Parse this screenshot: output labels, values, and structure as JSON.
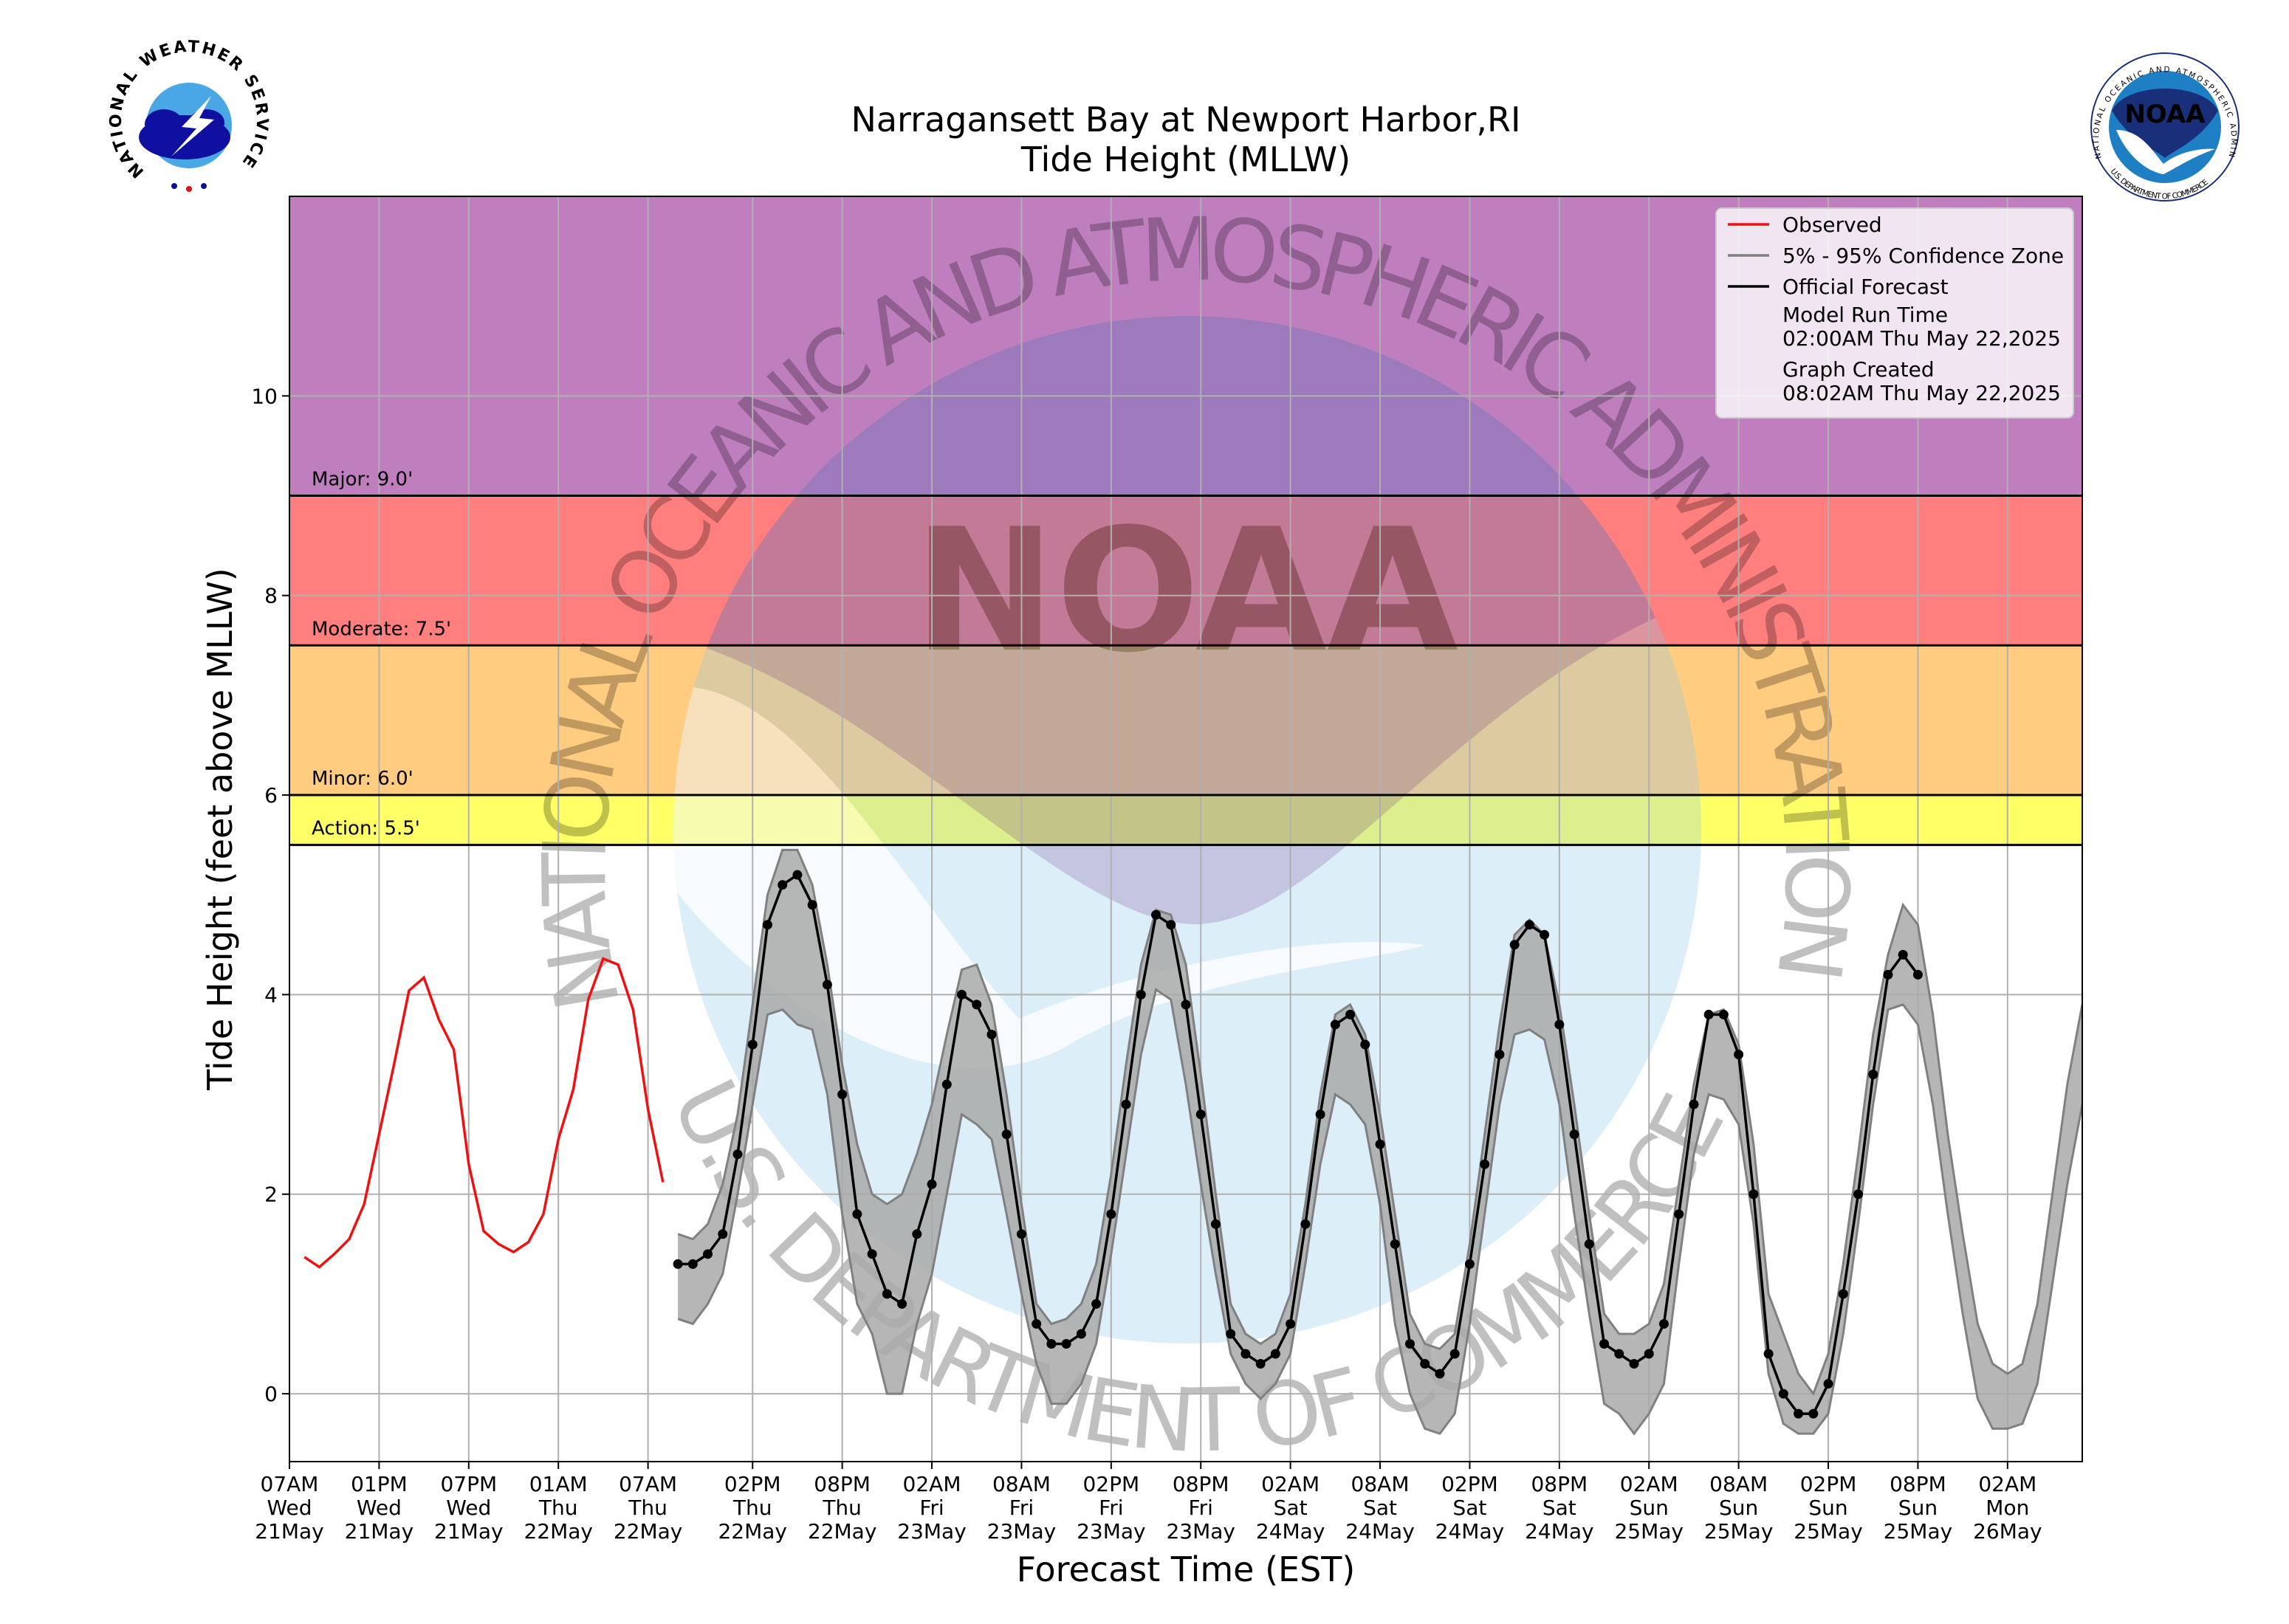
{
  "chart_data": {
    "type": "line",
    "title": "Narragansett Bay at Newport Harbor,RI",
    "subtitle": "Tide Height (MLLW)",
    "xlabel": "Forecast Time (EST)",
    "ylabel": "Tide Height (feet above MLLW)",
    "xlim": [
      "May 21 07:00",
      "May 26 07:00"
    ],
    "ylim": [
      -0.68,
      12
    ],
    "yticks": [
      0,
      2,
      4,
      6,
      8,
      10
    ],
    "grid": true,
    "legend_position": "upper right",
    "xticks": [
      {
        "value": "May 21 07:00",
        "label": [
          "07AM",
          "Wed",
          "21May"
        ]
      },
      {
        "value": "May 21 13:00",
        "label": [
          "01PM",
          "Wed",
          "21May"
        ]
      },
      {
        "value": "May 21 19:00",
        "label": [
          "07PM",
          "Wed",
          "21May"
        ]
      },
      {
        "value": "May 22 01:00",
        "label": [
          "01AM",
          "Thu",
          "22May"
        ]
      },
      {
        "value": "May 22 07:00",
        "label": [
          "07AM",
          "Thu",
          "22May"
        ]
      },
      {
        "value": "May 22 14:00",
        "label": [
          "02PM",
          "Thu",
          "22May"
        ]
      },
      {
        "value": "May 22 20:00",
        "label": [
          "08PM",
          "Thu",
          "22May"
        ]
      },
      {
        "value": "May 23 02:00",
        "label": [
          "02AM",
          "Fri",
          "23May"
        ]
      },
      {
        "value": "May 23 08:00",
        "label": [
          "08AM",
          "Fri",
          "23May"
        ]
      },
      {
        "value": "May 23 14:00",
        "label": [
          "02PM",
          "Fri",
          "23May"
        ]
      },
      {
        "value": "May 23 20:00",
        "label": [
          "08PM",
          "Fri",
          "23May"
        ]
      },
      {
        "value": "May 24 02:00",
        "label": [
          "02AM",
          "Sat",
          "24May"
        ]
      },
      {
        "value": "May 24 08:00",
        "label": [
          "08AM",
          "Sat",
          "24May"
        ]
      },
      {
        "value": "May 24 14:00",
        "label": [
          "02PM",
          "Sat",
          "24May"
        ]
      },
      {
        "value": "May 24 20:00",
        "label": [
          "08PM",
          "Sat",
          "24May"
        ]
      },
      {
        "value": "May 25 02:00",
        "label": [
          "02AM",
          "Sun",
          "25May"
        ]
      },
      {
        "value": "May 25 08:00",
        "label": [
          "08AM",
          "Sun",
          "25May"
        ]
      },
      {
        "value": "May 25 14:00",
        "label": [
          "02PM",
          "Sun",
          "25May"
        ]
      },
      {
        "value": "May 25 20:00",
        "label": [
          "08PM",
          "Sun",
          "25May"
        ]
      },
      {
        "value": "May 26 02:00",
        "label": [
          "02AM",
          "Mon",
          "26May"
        ]
      }
    ],
    "thresholds": [
      {
        "label": "Action: 5.5'",
        "value": 5.5,
        "color": "#ffff66"
      },
      {
        "label": "Minor: 6.0'",
        "value": 6.0,
        "color": "#ffcc80"
      },
      {
        "label": "Moderate: 7.5'",
        "value": 7.5,
        "color": "#ff7f7f"
      },
      {
        "label": "Major: 9.0'",
        "value": 9.0,
        "color": "#bf7fbf"
      }
    ],
    "series": [
      {
        "name": "Observed",
        "color": "#ee1111",
        "x": [
          "May 21 08:00",
          "May 21 09:00",
          "May 21 10:00",
          "May 21 11:00",
          "May 21 12:00",
          "May 21 13:00",
          "May 21 14:00",
          "May 21 15:00",
          "May 21 16:00",
          "May 21 17:00",
          "May 21 18:00",
          "May 21 19:00",
          "May 21 20:00",
          "May 21 21:00",
          "May 21 22:00",
          "May 21 23:00",
          "May 22 00:00",
          "May 22 01:00",
          "May 22 02:00",
          "May 22 03:00",
          "May 22 04:00",
          "May 22 05:00",
          "May 22 06:00",
          "May 22 07:00",
          "May 22 08:00"
        ],
        "values": [
          1.37,
          1.27,
          1.4,
          1.55,
          1.9,
          2.6,
          3.3,
          4.04,
          4.17,
          3.75,
          3.45,
          2.3,
          1.63,
          1.5,
          1.42,
          1.52,
          1.8,
          2.55,
          3.05,
          3.95,
          4.36,
          4.3,
          3.85,
          2.85,
          2.12
        ]
      },
      {
        "name": "5% - 95% Confidence Zone",
        "color": "#808080",
        "fill": "#a9a9a9",
        "x": [
          "May 22 09:00",
          "May 22 10:00",
          "May 22 11:00",
          "May 22 12:00",
          "May 22 13:00",
          "May 22 14:00",
          "May 22 15:00",
          "May 22 16:00",
          "May 22 17:00",
          "May 22 18:00",
          "May 22 19:00",
          "May 22 20:00",
          "May 22 21:00",
          "May 22 22:00",
          "May 22 23:00",
          "May 23 00:00",
          "May 23 01:00",
          "May 23 02:00",
          "May 23 03:00",
          "May 23 04:00",
          "May 23 05:00",
          "May 23 06:00",
          "May 23 07:00",
          "May 23 08:00",
          "May 23 09:00",
          "May 23 10:00",
          "May 23 11:00",
          "May 23 12:00",
          "May 23 13:00",
          "May 23 14:00",
          "May 23 15:00",
          "May 23 16:00",
          "May 23 17:00",
          "May 23 18:00",
          "May 23 19:00",
          "May 23 20:00",
          "May 23 21:00",
          "May 23 22:00",
          "May 23 23:00",
          "May 24 00:00",
          "May 24 01:00",
          "May 24 02:00",
          "May 24 03:00",
          "May 24 04:00",
          "May 24 05:00",
          "May 24 06:00",
          "May 24 07:00",
          "May 24 08:00",
          "May 24 09:00",
          "May 24 10:00",
          "May 24 11:00",
          "May 24 12:00",
          "May 24 13:00",
          "May 24 14:00",
          "May 24 15:00",
          "May 24 16:00",
          "May 24 17:00",
          "May 24 18:00",
          "May 24 19:00",
          "May 24 20:00",
          "May 24 21:00",
          "May 24 22:00",
          "May 24 23:00",
          "May 25 00:00",
          "May 25 01:00",
          "May 25 02:00",
          "May 25 03:00",
          "May 25 04:00",
          "May 25 05:00",
          "May 25 06:00",
          "May 25 07:00",
          "May 25 08:00",
          "May 25 09:00",
          "May 25 10:00",
          "May 25 11:00",
          "May 25 12:00",
          "May 25 13:00",
          "May 25 14:00",
          "May 25 15:00",
          "May 25 16:00",
          "May 25 17:00",
          "May 25 18:00",
          "May 25 19:00",
          "May 25 20:00",
          "May 25 21:00",
          "May 25 22:00",
          "May 25 23:00",
          "May 26 00:00",
          "May 26 01:00",
          "May 26 02:00",
          "May 26 03:00",
          "May 26 04:00",
          "May 26 05:00",
          "May 26 06:00",
          "May 26 07:00"
        ],
        "upper": [
          1.6,
          1.55,
          1.7,
          2.1,
          2.8,
          3.9,
          5.0,
          5.45,
          5.45,
          5.1,
          4.3,
          3.3,
          2.5,
          2.0,
          1.9,
          2.0,
          2.4,
          2.9,
          3.6,
          4.25,
          4.3,
          3.9,
          3.0,
          1.9,
          0.9,
          0.7,
          0.75,
          0.9,
          1.3,
          2.2,
          3.3,
          4.3,
          4.85,
          4.8,
          4.3,
          3.2,
          2.0,
          0.9,
          0.6,
          0.5,
          0.6,
          1.0,
          1.9,
          3.0,
          3.8,
          3.9,
          3.6,
          2.8,
          1.8,
          0.8,
          0.5,
          0.45,
          0.6,
          1.5,
          2.6,
          3.7,
          4.6,
          4.75,
          4.6,
          3.9,
          2.9,
          1.8,
          0.8,
          0.6,
          0.6,
          0.7,
          1.1,
          2.1,
          3.1,
          3.8,
          3.85,
          3.5,
          2.5,
          1.0,
          0.6,
          0.2,
          0.0,
          0.4,
          1.3,
          2.4,
          3.6,
          4.4,
          4.9,
          4.7,
          3.8,
          2.6,
          1.6,
          0.7,
          0.3,
          0.2,
          0.3,
          0.9,
          2.0,
          3.1,
          3.9
        ],
        "lower": [
          0.75,
          0.7,
          0.9,
          1.2,
          2.0,
          2.9,
          3.8,
          3.85,
          3.7,
          3.65,
          3.0,
          1.8,
          0.9,
          0.6,
          0.0,
          0.0,
          0.7,
          1.2,
          2.0,
          2.8,
          2.7,
          2.55,
          1.8,
          1.0,
          0.3,
          -0.1,
          -0.1,
          0.1,
          0.5,
          1.4,
          2.4,
          3.4,
          4.05,
          3.95,
          3.1,
          2.1,
          1.2,
          0.4,
          0.1,
          -0.05,
          0.1,
          0.4,
          1.3,
          2.3,
          3.0,
          2.9,
          2.7,
          1.9,
          0.7,
          0.0,
          -0.35,
          -0.4,
          -0.2,
          0.7,
          1.8,
          2.9,
          3.6,
          3.65,
          3.55,
          2.9,
          1.8,
          0.8,
          -0.1,
          -0.2,
          -0.4,
          -0.2,
          0.1,
          1.3,
          2.4,
          3.0,
          2.95,
          2.7,
          1.7,
          0.2,
          -0.3,
          -0.4,
          -0.4,
          -0.2,
          0.6,
          1.7,
          2.9,
          3.85,
          3.9,
          3.7,
          2.9,
          1.8,
          0.8,
          -0.05,
          -0.35,
          -0.35,
          -0.3,
          0.1,
          1.1,
          2.1,
          2.9
        ]
      },
      {
        "name": "Official Forecast",
        "color": "#000000",
        "markers": true,
        "x": [
          "May 22 09:00",
          "May 22 10:00",
          "May 22 11:00",
          "May 22 12:00",
          "May 22 13:00",
          "May 22 14:00",
          "May 22 15:00",
          "May 22 16:00",
          "May 22 17:00",
          "May 22 18:00",
          "May 22 19:00",
          "May 22 20:00",
          "May 22 21:00",
          "May 22 22:00",
          "May 22 23:00",
          "May 23 00:00",
          "May 23 01:00",
          "May 23 02:00",
          "May 23 03:00",
          "May 23 04:00",
          "May 23 05:00",
          "May 23 06:00",
          "May 23 07:00",
          "May 23 08:00",
          "May 23 09:00",
          "May 23 10:00",
          "May 23 11:00",
          "May 23 12:00",
          "May 23 13:00",
          "May 23 14:00",
          "May 23 15:00",
          "May 23 16:00",
          "May 23 17:00",
          "May 23 18:00",
          "May 23 19:00",
          "May 23 20:00",
          "May 23 21:00",
          "May 23 22:00",
          "May 23 23:00",
          "May 24 00:00",
          "May 24 01:00",
          "May 24 02:00",
          "May 24 03:00",
          "May 24 04:00",
          "May 24 05:00",
          "May 24 06:00",
          "May 24 07:00",
          "May 24 08:00",
          "May 24 09:00",
          "May 24 10:00",
          "May 24 11:00",
          "May 24 12:00",
          "May 24 13:00",
          "May 24 14:00",
          "May 24 15:00",
          "May 24 16:00",
          "May 24 17:00",
          "May 24 18:00",
          "May 24 19:00",
          "May 24 20:00",
          "May 24 21:00",
          "May 24 22:00",
          "May 24 23:00",
          "May 25 00:00",
          "May 25 01:00",
          "May 25 02:00",
          "May 25 03:00",
          "May 25 04:00",
          "May 25 05:00",
          "May 25 06:00",
          "May 25 07:00",
          "May 25 08:00",
          "May 25 09:00",
          "May 25 10:00",
          "May 25 11:00",
          "May 25 12:00",
          "May 25 13:00",
          "May 25 14:00",
          "May 25 15:00",
          "May 25 16:00",
          "May 25 17:00",
          "May 25 18:00",
          "May 25 19:00",
          "May 25 20:00"
        ],
        "values": [
          1.3,
          1.3,
          1.4,
          1.6,
          2.4,
          3.5,
          4.7,
          5.1,
          5.2,
          4.9,
          4.1,
          3.0,
          1.8,
          1.4,
          1.0,
          0.9,
          1.6,
          2.1,
          3.1,
          4.0,
          3.9,
          3.6,
          2.6,
          1.6,
          0.7,
          0.5,
          0.5,
          0.6,
          0.9,
          1.8,
          2.9,
          4.0,
          4.8,
          4.7,
          3.9,
          2.8,
          1.7,
          0.6,
          0.4,
          0.3,
          0.4,
          0.7,
          1.7,
          2.8,
          3.7,
          3.8,
          3.5,
          2.5,
          1.5,
          0.5,
          0.3,
          0.2,
          0.4,
          1.3,
          2.3,
          3.4,
          4.5,
          4.7,
          4.6,
          3.7,
          2.6,
          1.5,
          0.5,
          0.4,
          0.3,
          0.4,
          0.7,
          1.8,
          2.9,
          3.8,
          3.8,
          3.4,
          2.0,
          0.4,
          0.0,
          -0.2,
          -0.2,
          0.1,
          1.0,
          2.0,
          3.2,
          4.2,
          4.4,
          4.2
        ]
      }
    ],
    "legend_notes": [
      {
        "label": "Model Run Time",
        "value": "02:00AM Thu May 22,2025"
      },
      {
        "label": "Graph Created",
        "value": "08:02AM Thu May 22,2025"
      }
    ]
  },
  "watermark": {
    "center": "NOAA",
    "top": "NATIONAL OCEANIC AND ATMOSPHERIC ADMINISTRATION",
    "bottom": "U.S. DEPARTMENT OF COMMERCE"
  },
  "logos": {
    "nws": {
      "text": "NATIONAL WEATHER SERVICE"
    },
    "noaa": {
      "inner": "NOAA",
      "ring_top": "NATIONAL OCEANIC AND ATMOSPHERIC ADMINISTRATION",
      "ring_bottom": "U.S. DEPARTMENT OF COMMERCE"
    }
  }
}
